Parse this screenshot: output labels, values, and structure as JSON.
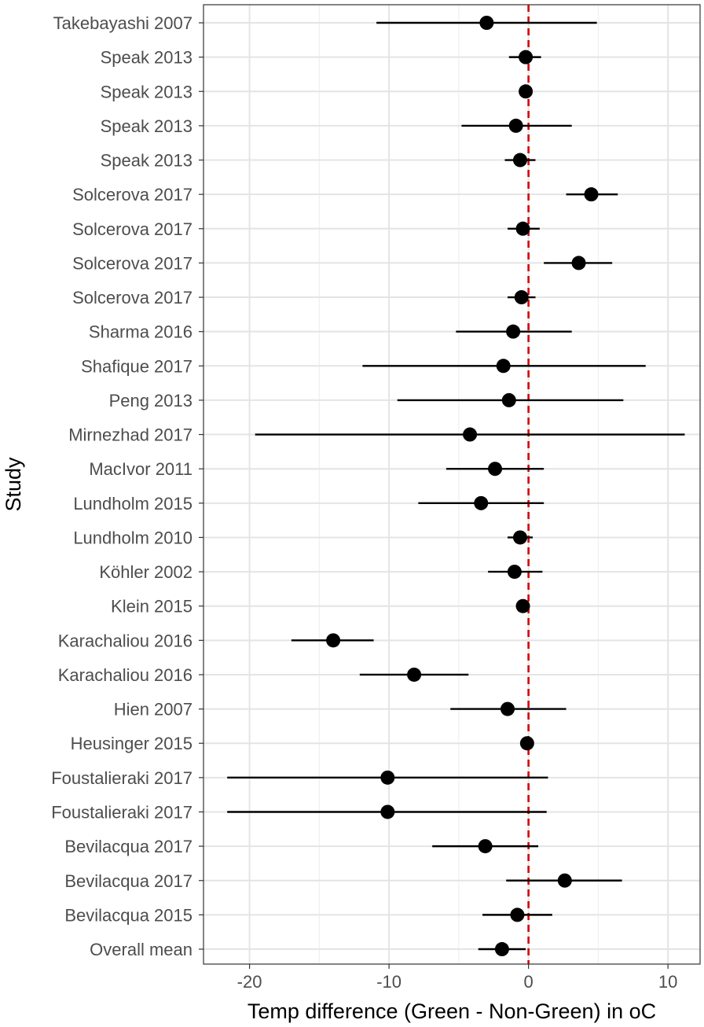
{
  "chart_data": {
    "type": "forest",
    "title": "",
    "xlabel": "Temp difference (Green - Non-Green) in oC",
    "ylabel": "Study",
    "xlim": [
      -23.3,
      12.3
    ],
    "xticks": [
      -20,
      -10,
      0,
      10
    ],
    "xtick_labels": [
      "-20",
      "-10",
      "0",
      "10"
    ],
    "reference_line": {
      "x": 0,
      "style": "dashed",
      "color": "#d40000"
    },
    "grid": true,
    "studies": [
      {
        "label": "Takebayashi 2007",
        "estimate": -3.0,
        "lower": -10.9,
        "upper": 4.9
      },
      {
        "label": "Speak 2013",
        "estimate": -0.2,
        "lower": -1.4,
        "upper": 0.9
      },
      {
        "label": "Speak 2013",
        "estimate": -0.2,
        "lower": -0.4,
        "upper": 0.0
      },
      {
        "label": "Speak 2013",
        "estimate": -0.9,
        "lower": -4.8,
        "upper": 3.1
      },
      {
        "label": "Speak 2013",
        "estimate": -0.6,
        "lower": -1.7,
        "upper": 0.5
      },
      {
        "label": "Solcerova 2017",
        "estimate": 4.5,
        "lower": 2.7,
        "upper": 6.4
      },
      {
        "label": "Solcerova 2017",
        "estimate": -0.4,
        "lower": -1.5,
        "upper": 0.8
      },
      {
        "label": "Solcerova 2017",
        "estimate": 3.6,
        "lower": 1.1,
        "upper": 6.0
      },
      {
        "label": "Solcerova 2017",
        "estimate": -0.5,
        "lower": -1.5,
        "upper": 0.5
      },
      {
        "label": "Sharma 2016",
        "estimate": -1.1,
        "lower": -5.2,
        "upper": 3.1
      },
      {
        "label": "Shafique 2017",
        "estimate": -1.8,
        "lower": -11.9,
        "upper": 8.4
      },
      {
        "label": "Peng 2013",
        "estimate": -1.4,
        "lower": -9.4,
        "upper": 6.8
      },
      {
        "label": "Mirnezhad 2017",
        "estimate": -4.2,
        "lower": -19.6,
        "upper": 11.2
      },
      {
        "label": "MacIvor 2011",
        "estimate": -2.4,
        "lower": -5.9,
        "upper": 1.1
      },
      {
        "label": "Lundholm 2015",
        "estimate": -3.4,
        "lower": -7.9,
        "upper": 1.1
      },
      {
        "label": "Lundholm 2010",
        "estimate": -0.6,
        "lower": -1.5,
        "upper": 0.3
      },
      {
        "label": "Köhler 2002",
        "estimate": -1.0,
        "lower": -2.9,
        "upper": 1.0
      },
      {
        "label": "Klein 2015",
        "estimate": -0.4,
        "lower": -0.5,
        "upper": -0.2
      },
      {
        "label": "Karachaliou 2016",
        "estimate": -14.0,
        "lower": -17.0,
        "upper": -11.1
      },
      {
        "label": "Karachaliou 2016",
        "estimate": -8.2,
        "lower": -12.1,
        "upper": -4.3
      },
      {
        "label": "Hien 2007",
        "estimate": -1.5,
        "lower": -5.6,
        "upper": 2.7
      },
      {
        "label": "Heusinger 2015",
        "estimate": -0.1,
        "lower": -0.3,
        "upper": 0.1
      },
      {
        "label": "Foustalieraki 2017",
        "estimate": -10.1,
        "lower": -21.6,
        "upper": 1.4
      },
      {
        "label": "Foustalieraki 2017",
        "estimate": -10.1,
        "lower": -21.6,
        "upper": 1.3
      },
      {
        "label": "Bevilacqua 2017",
        "estimate": -3.1,
        "lower": -6.9,
        "upper": 0.7
      },
      {
        "label": "Bevilacqua 2017",
        "estimate": 2.6,
        "lower": -1.6,
        "upper": 6.7
      },
      {
        "label": "Bevilacqua 2015",
        "estimate": -0.8,
        "lower": -3.3,
        "upper": 1.7
      },
      {
        "label": "Overall mean",
        "estimate": -1.9,
        "lower": -3.6,
        "upper": -0.2
      }
    ]
  }
}
